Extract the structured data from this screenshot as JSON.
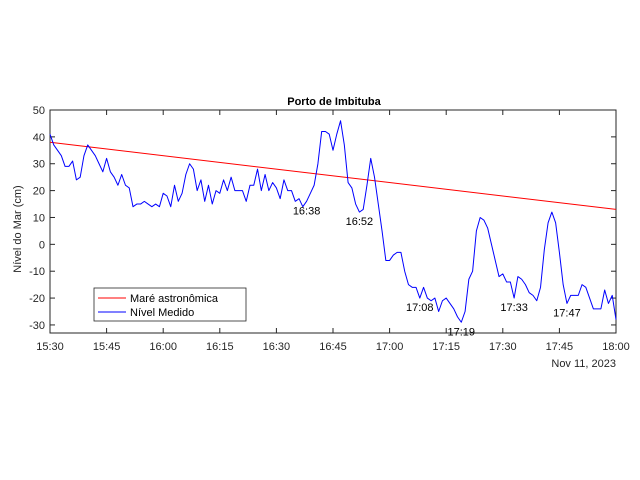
{
  "chart_data": {
    "type": "line",
    "title": "Porto de Imbituba",
    "xlabel": "",
    "ylabel": "Nível do Mar (cm)",
    "date_label": "Nov 11, 2023",
    "xlim": [
      "15:30",
      "18:00"
    ],
    "ylim": [
      -33,
      50
    ],
    "x_ticks": [
      "15:30",
      "15:45",
      "16:00",
      "16:15",
      "16:30",
      "16:45",
      "17:00",
      "17:15",
      "17:30",
      "17:45",
      "18:00"
    ],
    "y_ticks": [
      -30,
      -20,
      -10,
      0,
      10,
      20,
      30,
      40,
      50
    ],
    "grid": false,
    "legend_position": "bottom-left",
    "colors": {
      "astronomica": "#ff0000",
      "medido": "#0000ff",
      "axes": "#262626"
    },
    "series": [
      {
        "name": "Maré astronômica",
        "points": [
          [
            "15:30",
            38.0
          ],
          [
            "18:00",
            13.0
          ]
        ]
      },
      {
        "name": "Nível Medido",
        "points": [
          [
            "15:30",
            41
          ],
          [
            "15:31",
            37
          ],
          [
            "15:32",
            35
          ],
          [
            "15:33",
            33
          ],
          [
            "15:34",
            29
          ],
          [
            "15:35",
            29
          ],
          [
            "15:36",
            31
          ],
          [
            "15:37",
            24
          ],
          [
            "15:38",
            25
          ],
          [
            "15:39",
            33
          ],
          [
            "15:40",
            37
          ],
          [
            "15:41",
            35
          ],
          [
            "15:42",
            33
          ],
          [
            "15:43",
            30
          ],
          [
            "15:44",
            27
          ],
          [
            "15:45",
            32
          ],
          [
            "15:46",
            27
          ],
          [
            "15:47",
            25
          ],
          [
            "15:48",
            22
          ],
          [
            "15:49",
            26
          ],
          [
            "15:50",
            22
          ],
          [
            "15:51",
            21
          ],
          [
            "15:52",
            14
          ],
          [
            "15:53",
            15
          ],
          [
            "15:54",
            15
          ],
          [
            "15:55",
            16
          ],
          [
            "15:56",
            15
          ],
          [
            "15:57",
            14
          ],
          [
            "15:58",
            15
          ],
          [
            "15:59",
            14
          ],
          [
            "16:00",
            19
          ],
          [
            "16:01",
            18
          ],
          [
            "16:02",
            14
          ],
          [
            "16:03",
            22
          ],
          [
            "16:04",
            16
          ],
          [
            "16:05",
            19
          ],
          [
            "16:06",
            26
          ],
          [
            "16:07",
            30
          ],
          [
            "16:08",
            28
          ],
          [
            "16:09",
            20
          ],
          [
            "16:10",
            24
          ],
          [
            "16:11",
            16
          ],
          [
            "16:12",
            22
          ],
          [
            "16:13",
            15
          ],
          [
            "16:14",
            20
          ],
          [
            "16:15",
            19
          ],
          [
            "16:16",
            24
          ],
          [
            "16:17",
            20
          ],
          [
            "16:18",
            25
          ],
          [
            "16:19",
            20
          ],
          [
            "16:20",
            20
          ],
          [
            "16:21",
            20
          ],
          [
            "16:22",
            16
          ],
          [
            "16:23",
            22
          ],
          [
            "16:24",
            22
          ],
          [
            "16:25",
            28
          ],
          [
            "16:26",
            20
          ],
          [
            "16:27",
            26
          ],
          [
            "16:28",
            20
          ],
          [
            "16:29",
            23
          ],
          [
            "16:30",
            21
          ],
          [
            "16:31",
            17
          ],
          [
            "16:32",
            24
          ],
          [
            "16:33",
            20
          ],
          [
            "16:34",
            20
          ],
          [
            "16:35",
            16
          ],
          [
            "16:36",
            17
          ],
          [
            "16:37",
            14
          ],
          [
            "16:38",
            16
          ],
          [
            "16:39",
            19
          ],
          [
            "16:40",
            22
          ],
          [
            "16:41",
            30
          ],
          [
            "16:42",
            42
          ],
          [
            "16:43",
            42
          ],
          [
            "16:44",
            41
          ],
          [
            "16:45",
            35
          ],
          [
            "16:46",
            41
          ],
          [
            "16:47",
            46
          ],
          [
            "16:48",
            37
          ],
          [
            "16:49",
            23
          ],
          [
            "16:50",
            21
          ],
          [
            "16:51",
            15
          ],
          [
            "16:52",
            12
          ],
          [
            "16:53",
            13
          ],
          [
            "16:54",
            22
          ],
          [
            "16:55",
            32
          ],
          [
            "16:56",
            25
          ],
          [
            "16:57",
            15
          ],
          [
            "16:58",
            5
          ],
          [
            "16:59",
            -6
          ],
          [
            "17:00",
            -6
          ],
          [
            "17:01",
            -4
          ],
          [
            "17:02",
            -3
          ],
          [
            "17:03",
            -3
          ],
          [
            "17:04",
            -10
          ],
          [
            "17:05",
            -15
          ],
          [
            "17:06",
            -16
          ],
          [
            "17:07",
            -16
          ],
          [
            "17:08",
            -20
          ],
          [
            "17:09",
            -16
          ],
          [
            "17:10",
            -20
          ],
          [
            "17:11",
            -21
          ],
          [
            "17:12",
            -20
          ],
          [
            "17:13",
            -25
          ],
          [
            "17:14",
            -21
          ],
          [
            "17:15",
            -20
          ],
          [
            "17:16",
            -22
          ],
          [
            "17:17",
            -24
          ],
          [
            "17:18",
            -27
          ],
          [
            "17:19",
            -29
          ],
          [
            "17:20",
            -25
          ],
          [
            "17:21",
            -13
          ],
          [
            "17:22",
            -10
          ],
          [
            "17:23",
            5
          ],
          [
            "17:24",
            10
          ],
          [
            "17:25",
            9
          ],
          [
            "17:26",
            6
          ],
          [
            "17:27",
            0
          ],
          [
            "17:28",
            -6
          ],
          [
            "17:29",
            -12
          ],
          [
            "17:30",
            -11
          ],
          [
            "17:31",
            -14
          ],
          [
            "17:32",
            -14
          ],
          [
            "17:33",
            -20
          ],
          [
            "17:34",
            -12
          ],
          [
            "17:35",
            -13
          ],
          [
            "17:36",
            -15
          ],
          [
            "17:37",
            -18
          ],
          [
            "17:38",
            -19
          ],
          [
            "17:39",
            -21
          ],
          [
            "17:40",
            -16
          ],
          [
            "17:41",
            -2
          ],
          [
            "17:42",
            8
          ],
          [
            "17:43",
            12
          ],
          [
            "17:44",
            8
          ],
          [
            "17:45",
            -3
          ],
          [
            "17:46",
            -15
          ],
          [
            "17:47",
            -22
          ],
          [
            "17:48",
            -19
          ],
          [
            "17:49",
            -19
          ],
          [
            "17:50",
            -19
          ],
          [
            "17:51",
            -15
          ],
          [
            "17:52",
            -16
          ],
          [
            "17:53",
            -20
          ],
          [
            "17:54",
            -24
          ],
          [
            "17:55",
            -24
          ],
          [
            "17:56",
            -24
          ],
          [
            "17:57",
            -17
          ],
          [
            "17:58",
            -22
          ],
          [
            "17:59",
            -19
          ],
          [
            "18:00",
            -28
          ]
        ]
      }
    ],
    "annotations": [
      {
        "label": "16:38",
        "x": "16:38",
        "y": 16
      },
      {
        "label": "16:52",
        "x": "16:52",
        "y": 12
      },
      {
        "label": "17:08",
        "x": "17:08",
        "y": -20
      },
      {
        "label": "17:19",
        "x": "17:19",
        "y": -29
      },
      {
        "label": "17:33",
        "x": "17:33",
        "y": -20
      },
      {
        "label": "17:47",
        "x": "17:47",
        "y": -22
      }
    ]
  }
}
